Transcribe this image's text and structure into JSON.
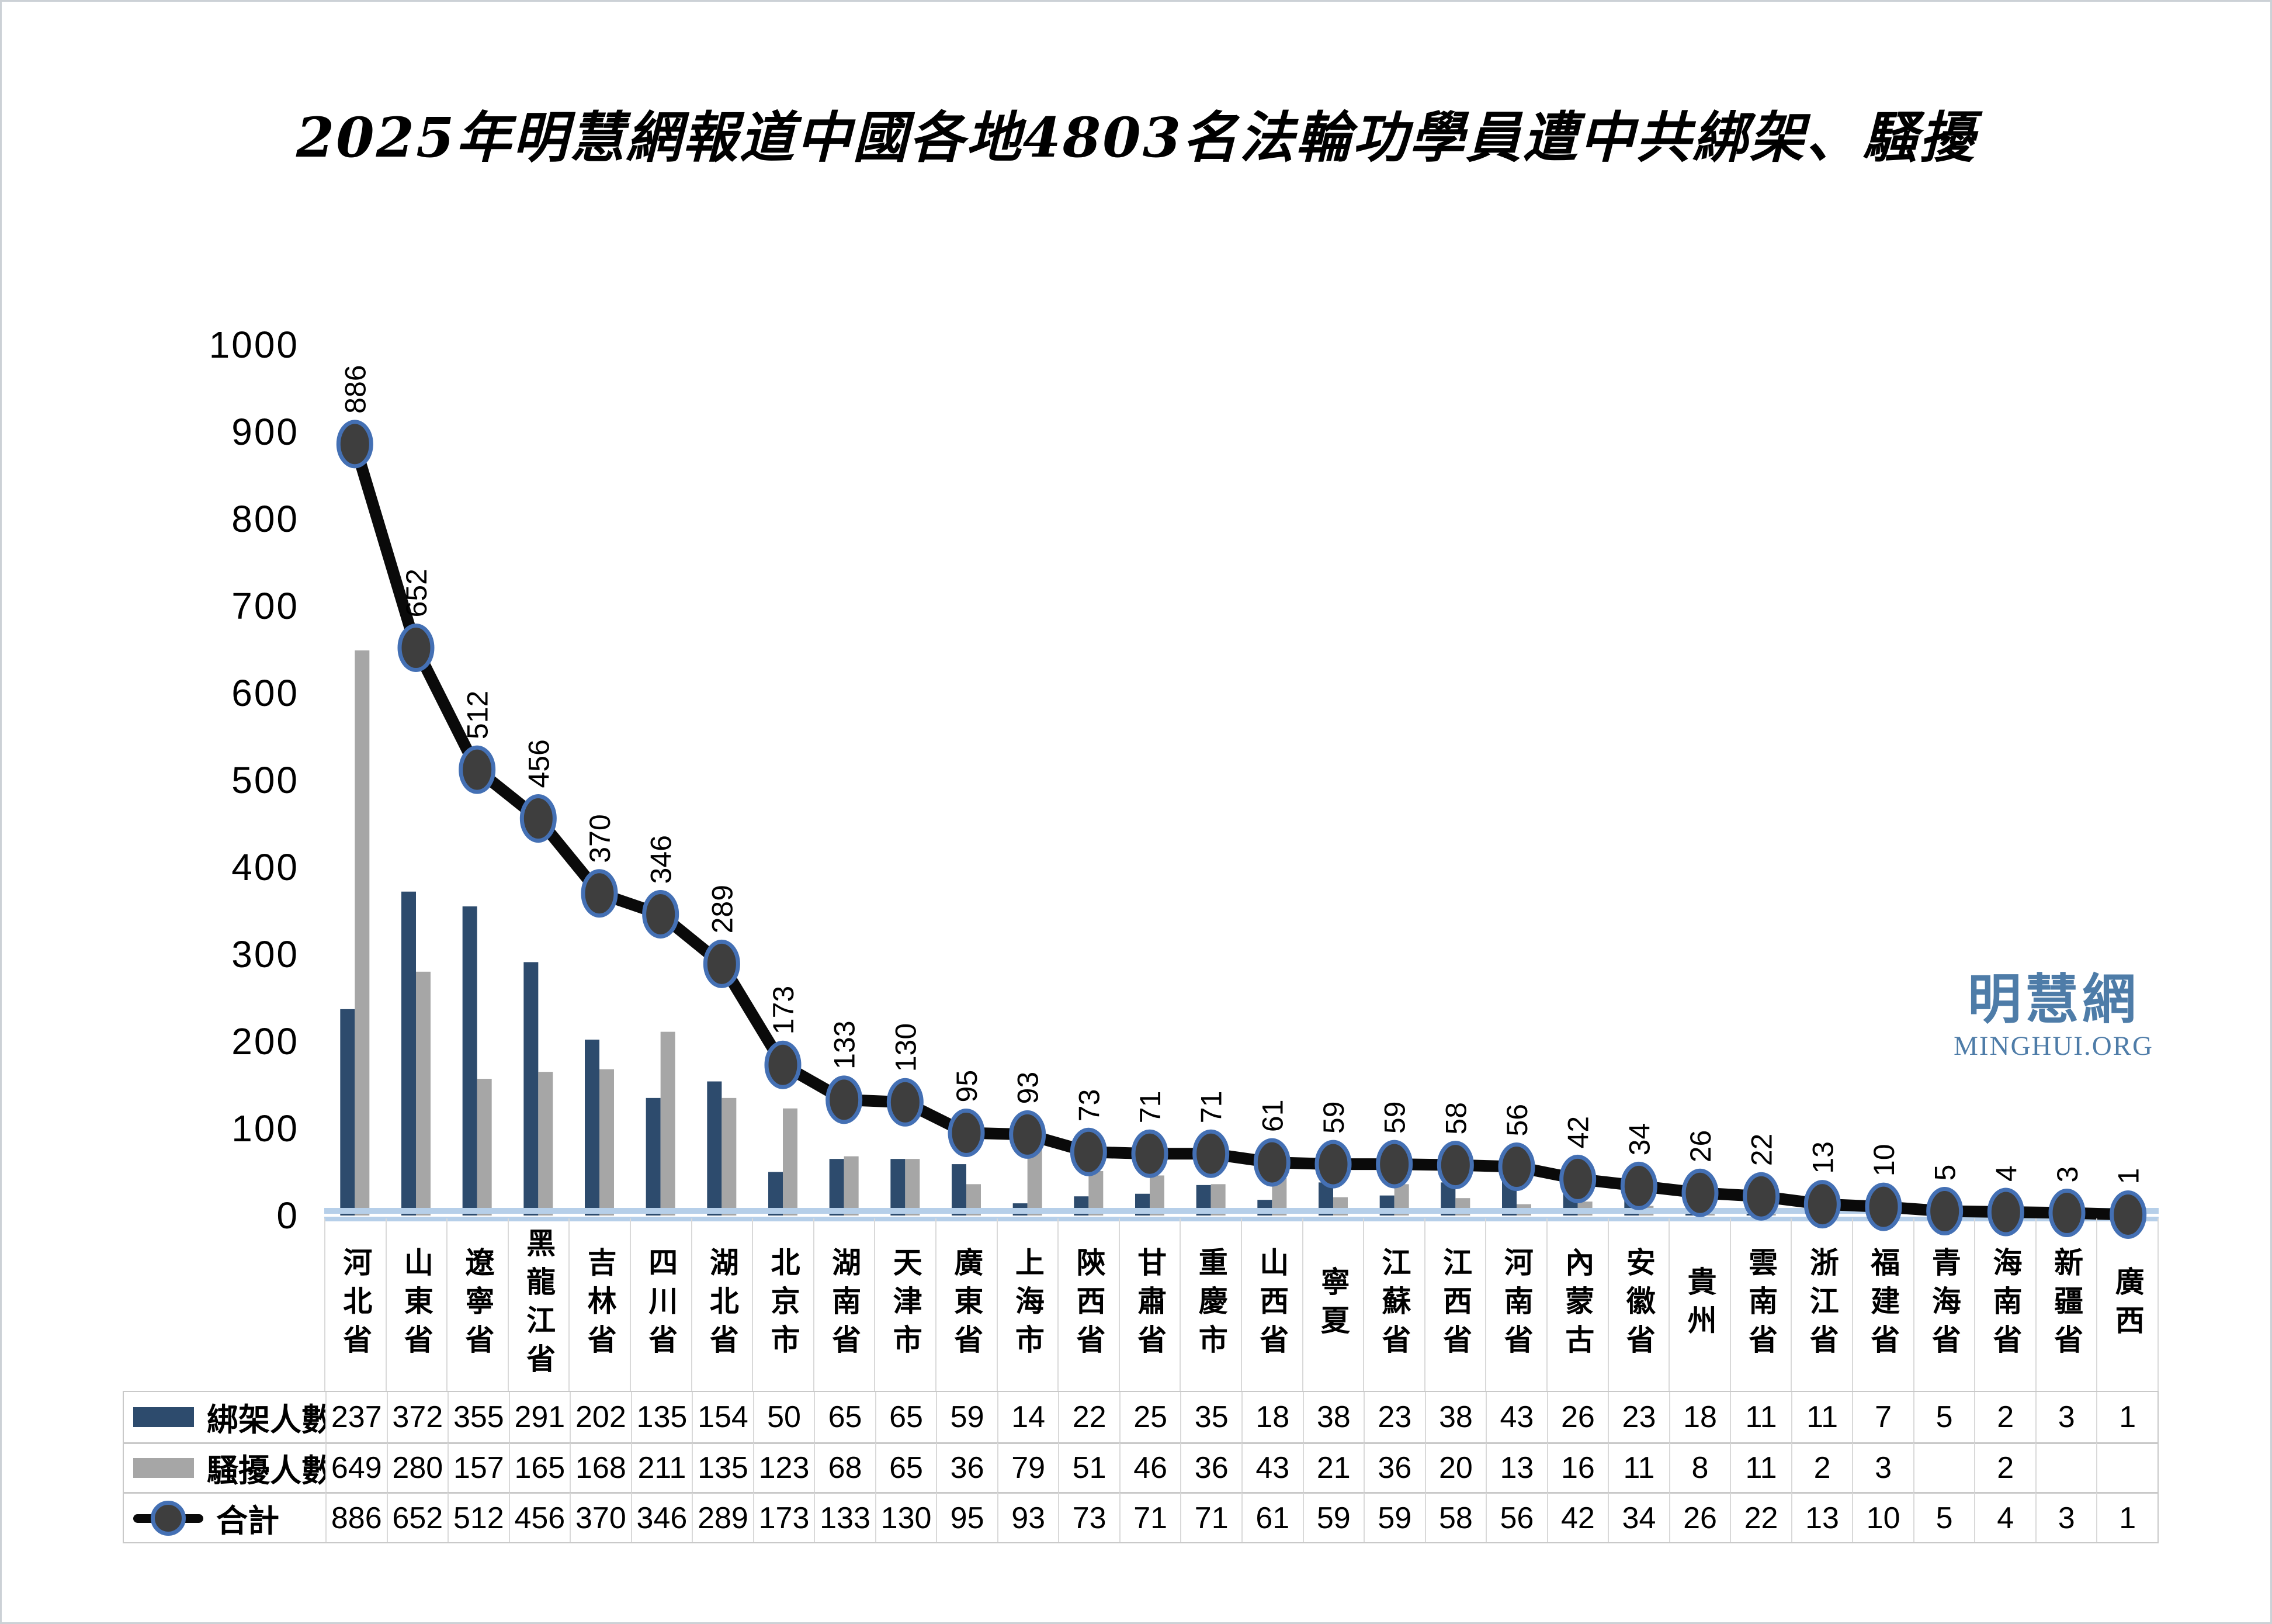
{
  "title": "2025年明慧網報道中國各地4803名法輪功學員遭中共綁架、騷擾",
  "logo": {
    "chinese": "明慧網",
    "latin": "MINGHUI.ORG"
  },
  "chart_data": {
    "type": "combo-bar-line",
    "title": "2025年明慧網報道中國各地4803名法輪功學員遭中共綁架、騷擾",
    "total_in_title": 4803,
    "categories": [
      "河北省",
      "山東省",
      "遼寧省",
      "黑龍江省",
      "吉林省",
      "四川省",
      "湖北省",
      "北京市",
      "湖南省",
      "天津市",
      "廣東省",
      "上海市",
      "陝西省",
      "甘肅省",
      "重慶市",
      "山西省",
      "寧夏",
      "江蘇省",
      "江西省",
      "河南省",
      "內蒙古",
      "安徽省",
      "貴州",
      "雲南省",
      "浙江省",
      "福建省",
      "青海省",
      "海南省",
      "新疆省",
      "廣西"
    ],
    "series": [
      {
        "name": "綁架人數",
        "type": "bar",
        "color": "#2d4b6d",
        "values": [
          237,
          372,
          355,
          291,
          202,
          135,
          154,
          50,
          65,
          65,
          59,
          14,
          22,
          25,
          35,
          18,
          38,
          23,
          38,
          43,
          26,
          23,
          18,
          11,
          11,
          7,
          5,
          2,
          3,
          1
        ]
      },
      {
        "name": "騷擾人數",
        "type": "bar",
        "color": "#a6a6a6",
        "values": [
          649,
          280,
          157,
          165,
          168,
          211,
          135,
          123,
          68,
          65,
          36,
          79,
          51,
          46,
          36,
          43,
          21,
          36,
          20,
          13,
          16,
          11,
          8,
          11,
          2,
          3,
          null,
          2,
          null,
          null
        ]
      },
      {
        "name": "合計",
        "type": "line",
        "color": "#0a0a0a",
        "marker_fill": "#3e3e3e",
        "marker_stroke": "#4470b4",
        "values": [
          886,
          652,
          512,
          456,
          370,
          346,
          289,
          173,
          133,
          130,
          95,
          93,
          73,
          71,
          71,
          61,
          59,
          59,
          58,
          56,
          42,
          34,
          26,
          22,
          13,
          10,
          5,
          4,
          3,
          1
        ]
      }
    ],
    "ylim": [
      0,
      1000
    ],
    "ytick_step": 100,
    "grid": false,
    "show_line_data_labels": true,
    "data_label_rotation_deg": -90,
    "axis_line_color": "#b6cfe9",
    "legend_position": "table-left-column"
  },
  "styles": {
    "column_grid_line": "#d9d9d9",
    "table_row_line": "#c9c9c9",
    "logo_color": "#4e7ca8",
    "text_color": "#000000"
  }
}
